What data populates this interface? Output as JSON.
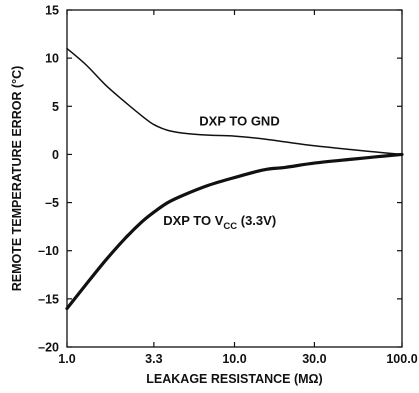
{
  "chart_data": {
    "type": "line",
    "xlabel": "LEAKAGE RESISTANCE (MΩ)",
    "ylabel": "REMOTE TEMPERATURE ERROR (°C)",
    "xscale": "log",
    "xlim": [
      1.0,
      100.0
    ],
    "ylim": [
      -20,
      15
    ],
    "x_ticks": [
      1.0,
      3.3,
      10.0,
      30.0,
      100.0
    ],
    "x_tick_labels": [
      "1.0",
      "3.3",
      "10.0",
      "30.0",
      "100.0"
    ],
    "y_ticks": [
      15,
      10,
      5,
      0,
      -5,
      -10,
      -15,
      -20
    ],
    "y_tick_labels": [
      "15",
      "10",
      "5",
      "0",
      "–5",
      "–10",
      "–15",
      "–20"
    ],
    "grid": false,
    "series": [
      {
        "name": "DXP TO GND",
        "line_weight": "thin",
        "points": [
          [
            1.0,
            11.0
          ],
          [
            1.3,
            9.3
          ],
          [
            1.7,
            7.2
          ],
          [
            2.2,
            5.5
          ],
          [
            2.8,
            4.0
          ],
          [
            3.3,
            3.1
          ],
          [
            4.0,
            2.5
          ],
          [
            5.0,
            2.2
          ],
          [
            7.0,
            2.0
          ],
          [
            10.0,
            1.9
          ],
          [
            15.0,
            1.6
          ],
          [
            20.0,
            1.3
          ],
          [
            30.0,
            0.9
          ],
          [
            50.0,
            0.5
          ],
          [
            70.0,
            0.25
          ],
          [
            100.0,
            0.0
          ]
        ]
      },
      {
        "name": "DXP TO VCC (3.3V)",
        "line_weight": "thick",
        "points": [
          [
            1.0,
            -16.0
          ],
          [
            1.3,
            -13.5
          ],
          [
            1.7,
            -11.0
          ],
          [
            2.2,
            -8.8
          ],
          [
            2.8,
            -7.0
          ],
          [
            3.3,
            -6.0
          ],
          [
            4.0,
            -5.0
          ],
          [
            5.0,
            -4.2
          ],
          [
            7.0,
            -3.2
          ],
          [
            10.0,
            -2.4
          ],
          [
            15.0,
            -1.6
          ],
          [
            20.0,
            -1.35
          ],
          [
            30.0,
            -0.9
          ],
          [
            50.0,
            -0.5
          ],
          [
            70.0,
            -0.25
          ],
          [
            100.0,
            0.0
          ]
        ]
      }
    ],
    "annotations": [
      {
        "text": "DXP TO GND",
        "x": 10.0,
        "y": 3.5
      },
      {
        "text_main": "DXP TO V",
        "text_sub": "CC",
        "text_tail": " (3.3V)",
        "x": 8.5,
        "y": -6.8
      }
    ]
  }
}
